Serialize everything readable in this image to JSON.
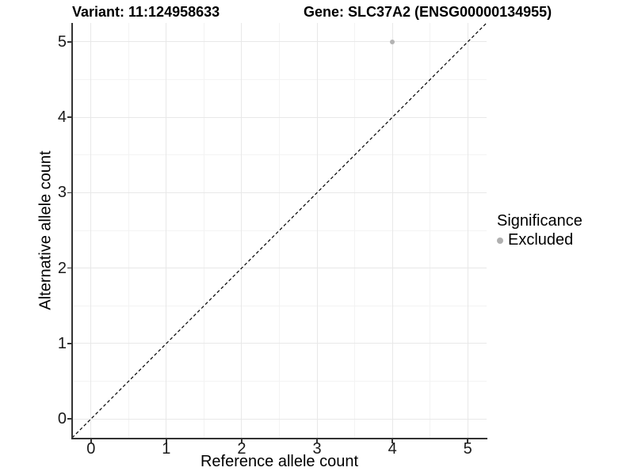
{
  "titles": {
    "variant": "Variant: 11:124958633",
    "gene": "Gene: SLC37A2 (ENSG00000134955)"
  },
  "legend": {
    "title": "Significance",
    "items": [
      {
        "label": "Excluded",
        "color": "#b0b0b0",
        "marker": "circle"
      }
    ]
  },
  "chart_data": {
    "type": "scatter",
    "title": "Variant: 11:124958633 — Gene: SLC37A2 (ENSG00000134955)",
    "xlabel": "Reference allele count",
    "ylabel": "Alternative allele count",
    "xlim": [
      -0.25,
      5.25
    ],
    "ylim": [
      -0.25,
      5.25
    ],
    "xticks": [
      0,
      1,
      2,
      3,
      4,
      5
    ],
    "yticks": [
      0,
      1,
      2,
      3,
      4,
      5
    ],
    "xminor": [
      0.5,
      1.5,
      2.5,
      3.5,
      4.5
    ],
    "yminor": [
      0.5,
      1.5,
      2.5,
      3.5,
      4.5
    ],
    "grid": true,
    "legend_position": "right",
    "series": [
      {
        "name": "Excluded",
        "color": "#b3b3b3",
        "marker_size_px": 6,
        "points": [
          {
            "x": 4,
            "y": 5
          }
        ]
      }
    ],
    "reference_line": {
      "type": "identity",
      "from": [
        -0.25,
        -0.25
      ],
      "to": [
        5.25,
        5.25
      ],
      "style": "dashed",
      "color": "#000000"
    }
  },
  "colors": {
    "background": "#ffffff",
    "grid_major": "#e8e8e8",
    "grid_minor": "#f3f3f3",
    "axis_line": "#333333",
    "tick_text": "#1a1a1a",
    "title_text": "#000000"
  }
}
